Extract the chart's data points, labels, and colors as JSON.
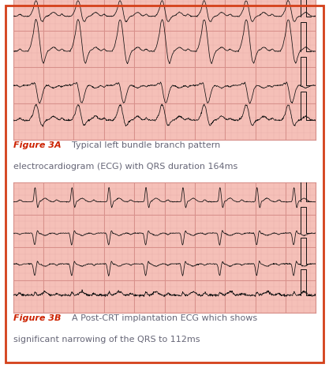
{
  "bg_color": "#ffffff",
  "border_color": "#d4401a",
  "ecg_bg_color": "#f5c0b8",
  "ecg_grid_major_color": "#d8908a",
  "ecg_grid_minor_color": "#e8b0aa",
  "ecg_line_color": "#111111",
  "fig_label_color": "#cc2200",
  "caption_color": "#666677",
  "fig3a_bold": "Figure 3A",
  "fig3a_text": " Typical left bundle branch pattern\nelectrocardiogram (ECG) with QRS duration 164ms",
  "fig3b_bold": "Figure 3B",
  "fig3b_text": " A Post-CRT implantation ECG which shows\nsignificant narrowing of the QRS to 112ms"
}
